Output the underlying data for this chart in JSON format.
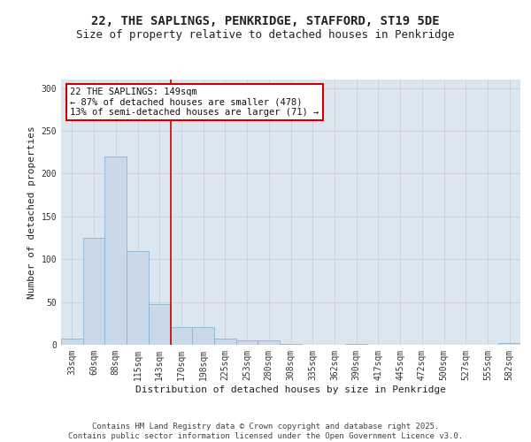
{
  "title_line1": "22, THE SAPLINGS, PENKRIDGE, STAFFORD, ST19 5DE",
  "title_line2": "Size of property relative to detached houses in Penkridge",
  "xlabel": "Distribution of detached houses by size in Penkridge",
  "ylabel": "Number of detached properties",
  "categories": [
    "33sqm",
    "60sqm",
    "88sqm",
    "115sqm",
    "143sqm",
    "170sqm",
    "198sqm",
    "225sqm",
    "253sqm",
    "280sqm",
    "308sqm",
    "335sqm",
    "362sqm",
    "390sqm",
    "417sqm",
    "445sqm",
    "472sqm",
    "500sqm",
    "527sqm",
    "555sqm",
    "582sqm"
  ],
  "values": [
    7,
    125,
    220,
    110,
    48,
    21,
    21,
    7,
    5,
    5,
    1,
    0,
    0,
    1,
    0,
    0,
    0,
    0,
    0,
    0,
    2
  ],
  "bar_color": "#c9d9e8",
  "bar_edge_color": "#7bafd4",
  "grid_color": "#cccccc",
  "background_color": "#dce6f0",
  "vline_x": 4.5,
  "vline_color": "#cc0000",
  "annotation_text": "22 THE SAPLINGS: 149sqm\n← 87% of detached houses are smaller (478)\n13% of semi-detached houses are larger (71) →",
  "annotation_box_color": "#ffffff",
  "annotation_box_edge": "#cc0000",
  "ylim": [
    0,
    310
  ],
  "yticks": [
    0,
    50,
    100,
    150,
    200,
    250,
    300
  ],
  "footer_line1": "Contains HM Land Registry data © Crown copyright and database right 2025.",
  "footer_line2": "Contains public sector information licensed under the Open Government Licence v3.0.",
  "title_fontsize": 10,
  "subtitle_fontsize": 9,
  "axis_label_fontsize": 8,
  "tick_fontsize": 7,
  "annotation_fontsize": 7.5,
  "footer_fontsize": 6.5
}
